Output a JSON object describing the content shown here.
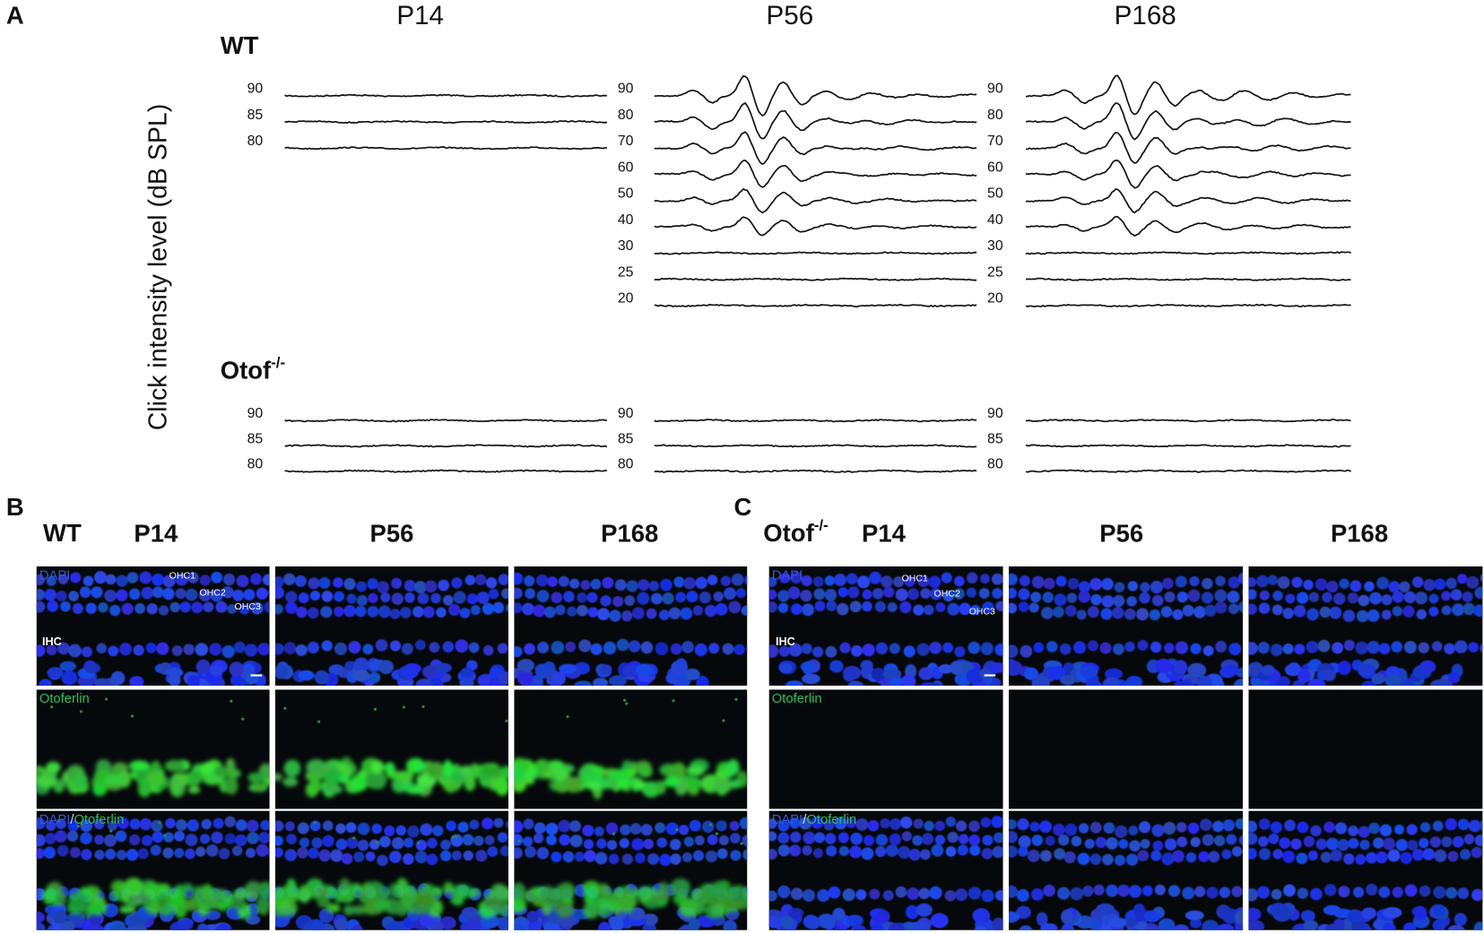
{
  "panel_a": {
    "label": "A",
    "columns": [
      "P14",
      "P56",
      "P168"
    ],
    "y_axis_label": "Click intensity level (dB SPL)",
    "groups": [
      {
        "name": "WT",
        "intensities": [
          [
            "90",
            "85",
            "80"
          ],
          [
            "90",
            "80",
            "70",
            "60",
            "50",
            "40",
            "30",
            "25",
            "20"
          ],
          [
            "90",
            "80",
            "70",
            "60",
            "50",
            "40",
            "30",
            "25",
            "20"
          ]
        ]
      },
      {
        "name": "Otof",
        "superscript": "-/-",
        "intensities": [
          [
            "90",
            "85",
            "80"
          ],
          [
            "90",
            "85",
            "80"
          ],
          [
            "90",
            "85",
            "80"
          ]
        ]
      }
    ]
  },
  "panel_b": {
    "label": "B",
    "genotype": "WT",
    "columns": [
      "P14",
      "P56",
      "P168"
    ],
    "channels": {
      "dapi": "DAPI",
      "otoferlin": "Otoferlin",
      "merge": [
        "DAPI",
        "/",
        "Otoferlin"
      ]
    },
    "annotations": [
      "OHC1",
      "OHC2",
      "OHC3",
      "IHC"
    ]
  },
  "panel_c": {
    "label": "C",
    "genotype": "Otof",
    "superscript": "-/-",
    "columns": [
      "P14",
      "P56",
      "P168"
    ],
    "channels": {
      "dapi": "DAPI",
      "otoferlin": "Otoferlin",
      "merge": [
        "DAPI",
        "/",
        "Otoferlin"
      ]
    },
    "annotations": [
      "OHC1",
      "OHC2",
      "OHC3",
      "IHC"
    ]
  }
}
